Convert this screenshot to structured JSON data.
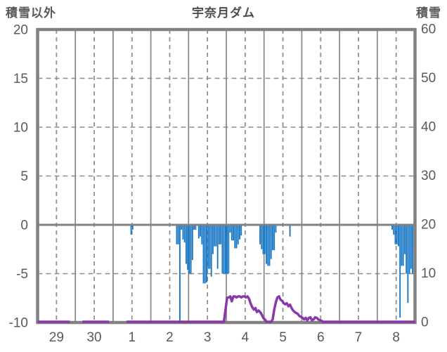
{
  "header": {
    "left_axis_label": "積雪以外",
    "title": "宇奈月ダム",
    "right_axis_label": "積雪"
  },
  "chart_data": {
    "type": "bar",
    "subtype": "hourly-bars-down-plus-line",
    "title": "宇奈月ダム",
    "categories": [
      "29",
      "30",
      "1",
      "2",
      "3",
      "4",
      "5",
      "6",
      "7",
      "8"
    ],
    "left_axis": {
      "label": "積雪以外",
      "min": -10,
      "max": 20,
      "ticks": [
        20,
        15,
        10,
        5,
        0,
        -5,
        -10
      ]
    },
    "right_axis": {
      "label": "積雪",
      "min": 0,
      "max": 60,
      "ticks": [
        60,
        50,
        40,
        30,
        20,
        10,
        0
      ]
    },
    "grid": {
      "vertical_solid": "day-boundaries",
      "vertical_dashed": "half-days",
      "horizontal_dashed": [
        15,
        10,
        5,
        -5
      ],
      "zero_line": true
    },
    "colors": {
      "bars": "#1878c6",
      "line": "#8a37ac",
      "frame": "#818181",
      "grid": "#8d8d8d",
      "text": "#595959"
    },
    "series": [
      {
        "name": "precipitation",
        "type": "bar",
        "axis": "left",
        "direction": "down-from-zero",
        "unit": "mm/h",
        "color": "#1878c6",
        "values_by_day": [
          [
            1,
            0,
            0,
            0,
            0,
            0,
            0,
            0,
            0,
            0,
            0,
            0,
            0,
            0,
            0,
            0,
            0,
            0,
            0,
            0,
            0,
            0,
            0,
            0
          ],
          [
            0,
            0,
            0,
            0,
            0,
            0,
            0,
            0,
            0,
            0,
            0,
            0,
            0,
            0,
            0,
            0,
            0,
            0,
            0,
            0,
            0,
            0,
            0,
            0
          ],
          [
            0,
            0,
            0,
            0,
            0,
            0,
            0,
            0,
            0,
            0,
            0,
            1,
            0.5,
            0,
            0,
            0,
            0,
            0,
            0,
            0,
            0,
            0,
            0,
            0
          ],
          [
            0,
            0,
            0,
            0,
            0,
            0,
            0,
            0,
            0,
            0,
            0,
            0,
            0,
            0,
            0,
            0,
            2,
            2,
            10,
            0.5,
            1.5,
            1.8,
            4,
            4.6
          ],
          [
            5,
            5,
            3.6,
            0.5,
            0.5,
            0,
            1.4,
            1.2,
            2,
            6,
            6,
            5.9,
            4.5,
            4.5,
            5.3,
            3,
            2.2,
            2.2,
            4.5,
            2,
            2,
            5,
            5,
            5
          ],
          [
            5,
            5,
            0.8,
            1.6,
            1.6,
            2.4,
            2.4,
            2,
            1.5,
            1.1,
            0,
            0,
            0,
            0,
            0,
            0,
            0,
            0,
            0,
            0,
            0,
            2,
            2.5,
            3
          ],
          [
            3,
            4,
            4.2,
            4.2,
            3.5,
            2.6,
            2.6,
            0.8,
            0,
            0,
            0,
            0,
            0,
            0,
            0,
            0,
            1.2,
            0,
            0,
            0,
            0,
            0,
            0,
            0
          ],
          [
            0,
            0,
            0,
            0,
            0,
            0,
            0,
            0,
            0,
            0,
            0,
            0,
            0,
            0,
            0,
            0,
            0,
            0,
            0,
            0,
            0,
            0,
            0,
            0
          ],
          [
            0,
            0,
            0,
            0,
            0,
            0,
            0,
            0,
            0,
            0,
            0,
            0,
            0,
            0,
            0,
            0,
            0,
            0,
            0,
            0,
            0,
            0,
            0,
            0
          ],
          [
            0,
            0,
            0,
            0,
            0,
            0,
            0,
            0,
            0,
            0.5,
            1,
            2,
            2,
            2.2,
            9.5,
            4.2,
            4.2,
            3,
            5,
            8,
            5,
            4.5,
            5,
            2.5
          ]
        ]
      },
      {
        "name": "snow_depth",
        "type": "line",
        "axis": "right",
        "unit": "cm",
        "color": "#8a37ac",
        "values_by_day": [
          [
            0,
            0,
            0,
            0,
            0,
            0,
            0,
            0,
            0,
            0,
            0,
            0,
            0,
            0,
            0,
            0,
            0,
            0,
            0,
            0,
            0,
            null,
            null,
            null
          ],
          [
            null,
            null,
            null,
            null,
            0,
            0,
            0,
            0,
            0,
            0,
            0,
            0,
            0,
            0,
            0,
            0,
            0,
            0,
            0,
            0,
            0,
            0,
            null,
            null
          ],
          [
            null,
            null,
            null,
            null,
            null,
            null,
            null,
            null,
            0,
            0,
            0,
            0,
            0,
            0,
            0,
            0,
            0,
            0,
            0,
            0,
            0,
            0,
            0,
            0
          ],
          [
            0,
            0,
            0,
            0,
            0,
            0,
            0,
            0,
            0,
            0,
            0,
            0,
            0,
            0,
            0,
            0,
            0,
            0,
            0,
            0,
            0,
            0,
            0,
            0
          ],
          [
            0,
            0,
            0,
            0,
            0,
            0,
            0,
            0,
            0,
            0,
            0,
            0,
            0,
            0,
            0,
            0,
            0,
            0,
            0,
            0,
            0,
            0,
            0,
            2.5
          ],
          [
            4.9,
            5,
            5.2,
            4.2,
            5.2,
            5.2,
            5,
            5.2,
            5.2,
            5,
            5.2,
            5.2,
            5,
            5.2,
            4.7,
            3.7,
            3,
            2.5,
            2.8,
            2,
            2.3,
            2,
            1.5,
            0.8
          ],
          [
            0.5,
            0,
            0,
            0,
            0,
            0.5,
            2.5,
            4,
            5,
            5.2,
            4.5,
            4.3,
            3.8,
            3.6,
            3.8,
            3.2,
            3.5,
            2.8,
            2.3,
            2,
            1.8,
            1.6,
            1.2,
            1
          ],
          [
            0.8,
            0.5,
            0.8,
            0.3,
            0.8,
            0.9,
            0.3,
            0.5,
            0.9,
            0.8,
            0.5,
            0.3,
            0.2,
            0,
            0,
            0,
            0,
            0,
            0,
            0,
            0,
            0,
            0,
            0
          ],
          [
            0,
            0,
            0,
            0,
            0,
            0,
            0,
            0,
            0,
            0,
            0,
            0,
            0,
            0,
            0,
            0,
            0,
            0,
            0,
            0,
            0,
            0,
            0,
            0
          ],
          [
            0,
            0,
            0,
            0,
            0,
            0,
            0,
            0,
            0,
            0,
            0,
            0,
            0,
            0,
            0,
            0,
            0,
            0,
            0,
            0,
            0,
            0,
            0,
            0
          ]
        ]
      }
    ]
  }
}
